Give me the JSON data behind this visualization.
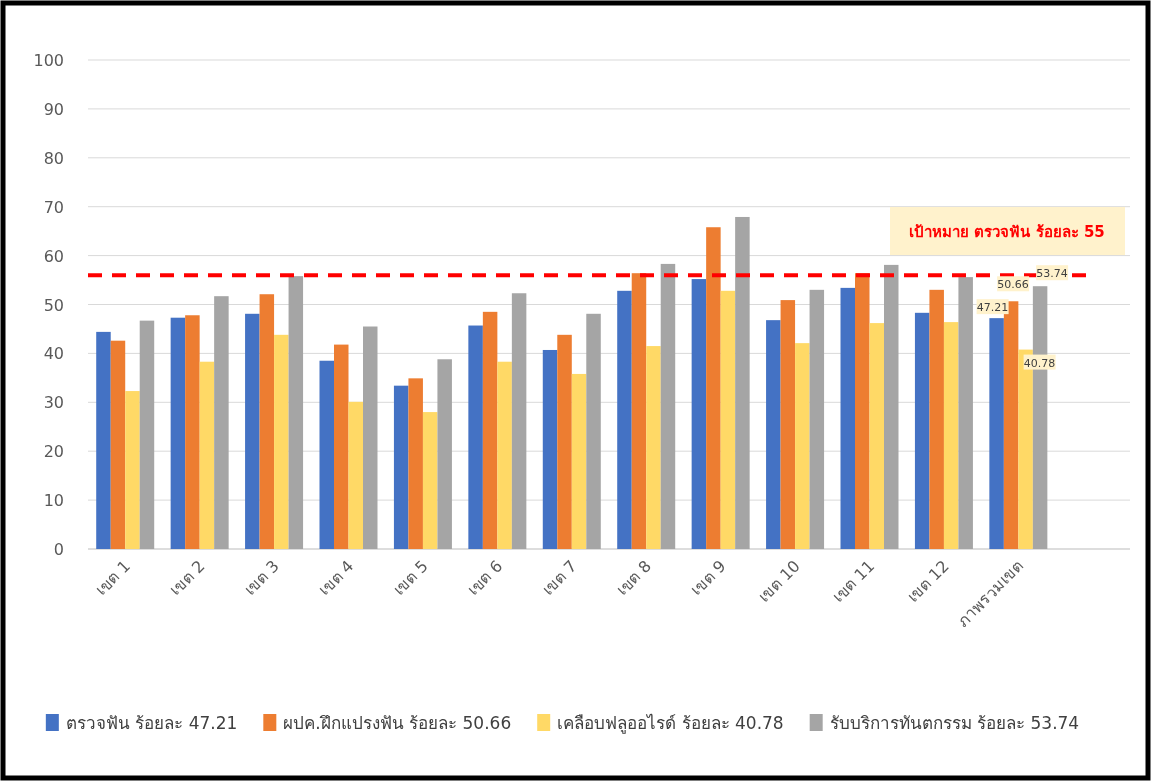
{
  "chart_data": {
    "type": "bar",
    "categories": [
      "เขต 1",
      "เขต 2",
      "เขต 3",
      "เขต 4",
      "เขต 5",
      "เขต 6",
      "เขต 7",
      "เขต 8",
      "เขต 9",
      "เขต 10",
      "เขต 11",
      "เขต 12",
      "ภาพรวมเขต"
    ],
    "series": [
      {
        "name": "ตรวจฟัน ร้อยละ 47.21",
        "color": "#4472c4",
        "values": [
          44.4,
          47.3,
          48.1,
          38.5,
          33.4,
          45.7,
          40.7,
          52.8,
          55.2,
          46.8,
          53.4,
          48.3,
          47.21
        ],
        "value_labels": [
          null,
          null,
          null,
          null,
          null,
          null,
          null,
          null,
          null,
          null,
          null,
          null,
          "47.21"
        ]
      },
      {
        "name": "ผปค.ฝึกแปรงฟัน ร้อยละ 50.66",
        "color": "#ed7d31",
        "values": [
          42.6,
          47.8,
          52.1,
          41.8,
          34.9,
          48.5,
          43.8,
          56.4,
          65.8,
          50.9,
          56.4,
          53.0,
          50.66
        ],
        "value_labels": [
          null,
          null,
          null,
          null,
          null,
          null,
          null,
          null,
          null,
          null,
          null,
          null,
          "50.66"
        ]
      },
      {
        "name": "เคลือบฟลูออไรด์ ร้อยละ 40.78",
        "color": "#ffd966",
        "values": [
          32.3,
          38.3,
          43.8,
          30.1,
          28.0,
          38.3,
          35.8,
          41.5,
          52.8,
          42.1,
          46.2,
          46.4,
          40.78
        ],
        "value_labels": [
          null,
          null,
          null,
          null,
          null,
          null,
          null,
          null,
          null,
          null,
          null,
          null,
          "40.78"
        ]
      },
      {
        "name": "รับบริการทันตกรรม ร้อยละ 53.74",
        "color": "#a5a5a5",
        "values": [
          46.7,
          51.7,
          55.8,
          45.5,
          38.8,
          52.3,
          48.1,
          58.3,
          67.9,
          53.0,
          58.1,
          55.6,
          53.74
        ],
        "value_labels": [
          null,
          null,
          null,
          null,
          null,
          null,
          null,
          null,
          null,
          null,
          null,
          null,
          "53.74"
        ]
      }
    ],
    "ylim": [
      0,
      100
    ],
    "yticks": [
      0,
      10,
      20,
      30,
      40,
      50,
      60,
      70,
      80,
      90,
      100
    ],
    "grid": "y",
    "legend": "bottom",
    "ref_lines": [
      {
        "axis": "y",
        "value": 56,
        "label": "เป้าหมาย ตรวจฟัน ร้อยละ 55",
        "color": "#ff0000",
        "line_style": "dashed"
      }
    ]
  }
}
